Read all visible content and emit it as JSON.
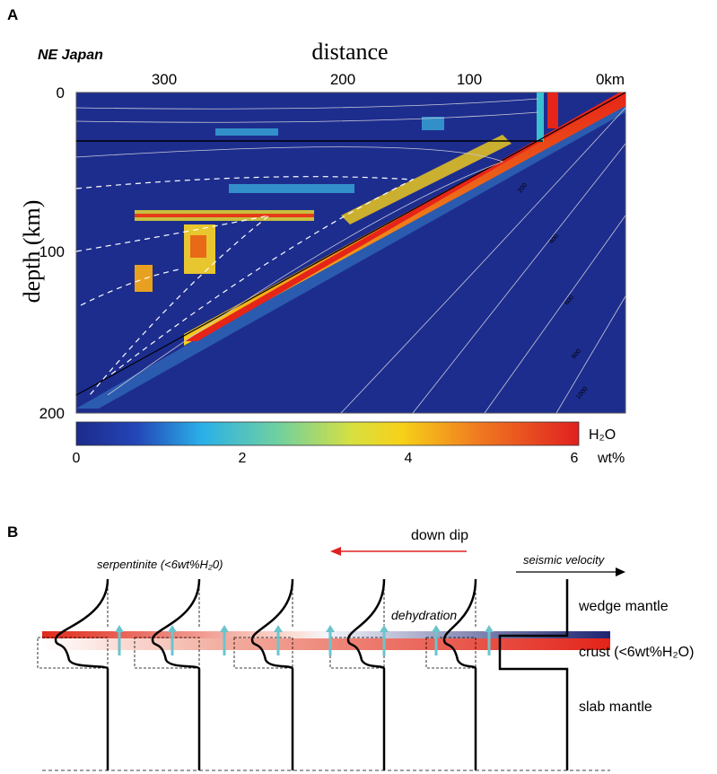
{
  "panel_a": {
    "label": "A",
    "region": "NE Japan",
    "x_axis": {
      "title": "distance",
      "ticks": [
        "300",
        "200",
        "100",
        "0km"
      ]
    },
    "y_axis": {
      "title": "depth (km)",
      "ticks": [
        "0",
        "100",
        "200"
      ]
    },
    "contour_labels": [
      "200",
      "400",
      "600",
      "800",
      "1000"
    ],
    "colorbar": {
      "title": "H₂O",
      "ticks": [
        "0",
        "2",
        "4",
        "6"
      ],
      "unit": "wt%"
    }
  },
  "panel_b": {
    "label": "B",
    "arrow_label": "down dip",
    "annotations": {
      "mineral": "serpentinite (<6wt%H₂0)",
      "velocity": "seismic velocity",
      "process": "dehydration"
    },
    "layers": [
      "wedge mantle",
      "crust (<6wt%H₂O)",
      "slab mantle"
    ]
  }
}
